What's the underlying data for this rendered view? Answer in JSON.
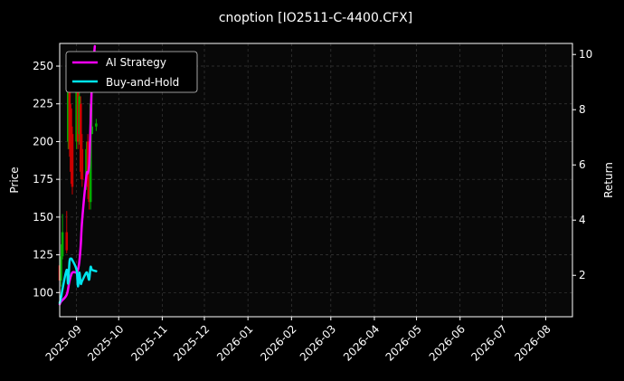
{
  "chart_data": {
    "type": "line",
    "title": "cnoption [IO2511-C-4400.CFX]",
    "xlabel": "",
    "ylabel": "Price",
    "y2label": "Return",
    "xlim": [
      "2025-08-20",
      "2026-08-20"
    ],
    "ylim": [
      84,
      265
    ],
    "y2lim": [
      0.5,
      10.4
    ],
    "x_ticks": [
      "2025-09-01",
      "2025-10-01",
      "2025-11-01",
      "2025-12-01",
      "2026-01-01",
      "2026-02-01",
      "2026-03-01",
      "2026-04-01",
      "2026-05-01",
      "2026-06-01",
      "2026-07-01",
      "2026-08-01"
    ],
    "x_tick_labels": [
      "2025-09",
      "2025-10",
      "2025-11",
      "2025-12",
      "2026-01",
      "2026-02",
      "2026-03",
      "2026-04",
      "2026-05",
      "2026-06",
      "2026-07",
      "2026-08"
    ],
    "y_ticks": [
      100,
      125,
      150,
      175,
      200,
      225,
      250
    ],
    "y2_ticks": [
      2,
      4,
      6,
      8,
      10
    ],
    "grid": true,
    "legend_position": "top-left",
    "colors": {
      "background": "#000000",
      "plot_background": "#080808",
      "axis": "#ffffff",
      "grid": "#3a3a3a",
      "candle_up": "#00aa00",
      "candle_down": "#cc0000",
      "ai_strategy": "#ff00ff",
      "buy_and_hold": "#00e5ee"
    },
    "candles": [
      {
        "date": "2025-08-20",
        "open": 118,
        "close": 108,
        "high": 122,
        "low": 100
      },
      {
        "date": "2025-08-21",
        "open": 108,
        "close": 124,
        "high": 132,
        "low": 104
      },
      {
        "date": "2025-08-22",
        "open": 124,
        "close": 140,
        "high": 152,
        "low": 122
      },
      {
        "date": "2025-08-25",
        "open": 140,
        "close": 128,
        "high": 154,
        "low": 126
      },
      {
        "date": "2025-08-26",
        "open": 200,
        "close": 235,
        "high": 240,
        "low": 195
      },
      {
        "date": "2025-08-27",
        "open": 235,
        "close": 195,
        "high": 238,
        "low": 190
      },
      {
        "date": "2025-08-28",
        "open": 222,
        "close": 180,
        "high": 225,
        "low": 172
      },
      {
        "date": "2025-08-29",
        "open": 205,
        "close": 170,
        "high": 210,
        "low": 165
      },
      {
        "date": "2025-09-01",
        "open": 200,
        "close": 240,
        "high": 248,
        "low": 195
      },
      {
        "date": "2025-09-02",
        "open": 235,
        "close": 200,
        "high": 238,
        "low": 195
      },
      {
        "date": "2025-09-03",
        "open": 205,
        "close": 230,
        "high": 235,
        "low": 198
      },
      {
        "date": "2025-09-04",
        "open": 225,
        "close": 180,
        "high": 230,
        "low": 175
      },
      {
        "date": "2025-09-05",
        "open": 195,
        "close": 175,
        "high": 205,
        "low": 170
      },
      {
        "date": "2025-09-08",
        "open": 175,
        "close": 195,
        "high": 200,
        "low": 168
      },
      {
        "date": "2025-09-09",
        "open": 200,
        "close": 170,
        "high": 205,
        "low": 162
      },
      {
        "date": "2025-09-10",
        "open": 175,
        "close": 160,
        "high": 180,
        "low": 155
      },
      {
        "date": "2025-09-11",
        "open": 160,
        "close": 225,
        "high": 228,
        "low": 155
      },
      {
        "date": "2025-09-12",
        "open": 205,
        "close": 210,
        "high": 240,
        "low": 205
      },
      {
        "date": "2025-09-15",
        "open": 210,
        "close": 212,
        "high": 215,
        "low": 207
      }
    ],
    "series": [
      {
        "name": "AI Strategy",
        "axis": "right",
        "x": [
          "2025-08-20",
          "2025-08-21",
          "2025-08-25",
          "2025-08-27",
          "2025-08-29",
          "2025-09-01",
          "2025-09-02",
          "2025-09-03",
          "2025-09-04",
          "2025-09-05",
          "2025-09-08",
          "2025-09-09",
          "2025-09-10",
          "2025-09-11",
          "2025-09-12",
          "2025-09-14"
        ],
        "values": [
          0.95,
          1.05,
          1.3,
          1.8,
          2.1,
          2.1,
          2.2,
          2.5,
          3.1,
          4.0,
          5.6,
          5.7,
          6.0,
          7.5,
          9.0,
          10.3
        ]
      },
      {
        "name": "Buy-and-Hold",
        "axis": "right",
        "x": [
          "2025-08-20",
          "2025-08-21",
          "2025-08-22",
          "2025-08-25",
          "2025-08-26",
          "2025-08-27",
          "2025-08-28",
          "2025-08-29",
          "2025-09-01",
          "2025-09-02",
          "2025-09-03",
          "2025-09-04",
          "2025-09-05",
          "2025-09-08",
          "2025-09-09",
          "2025-09-10",
          "2025-09-11",
          "2025-09-12",
          "2025-09-15"
        ],
        "values": [
          1.0,
          1.2,
          1.5,
          2.2,
          1.7,
          2.5,
          2.6,
          2.55,
          2.2,
          1.6,
          2.1,
          1.7,
          1.8,
          2.1,
          2.0,
          1.85,
          2.3,
          2.2,
          2.15
        ]
      }
    ]
  }
}
